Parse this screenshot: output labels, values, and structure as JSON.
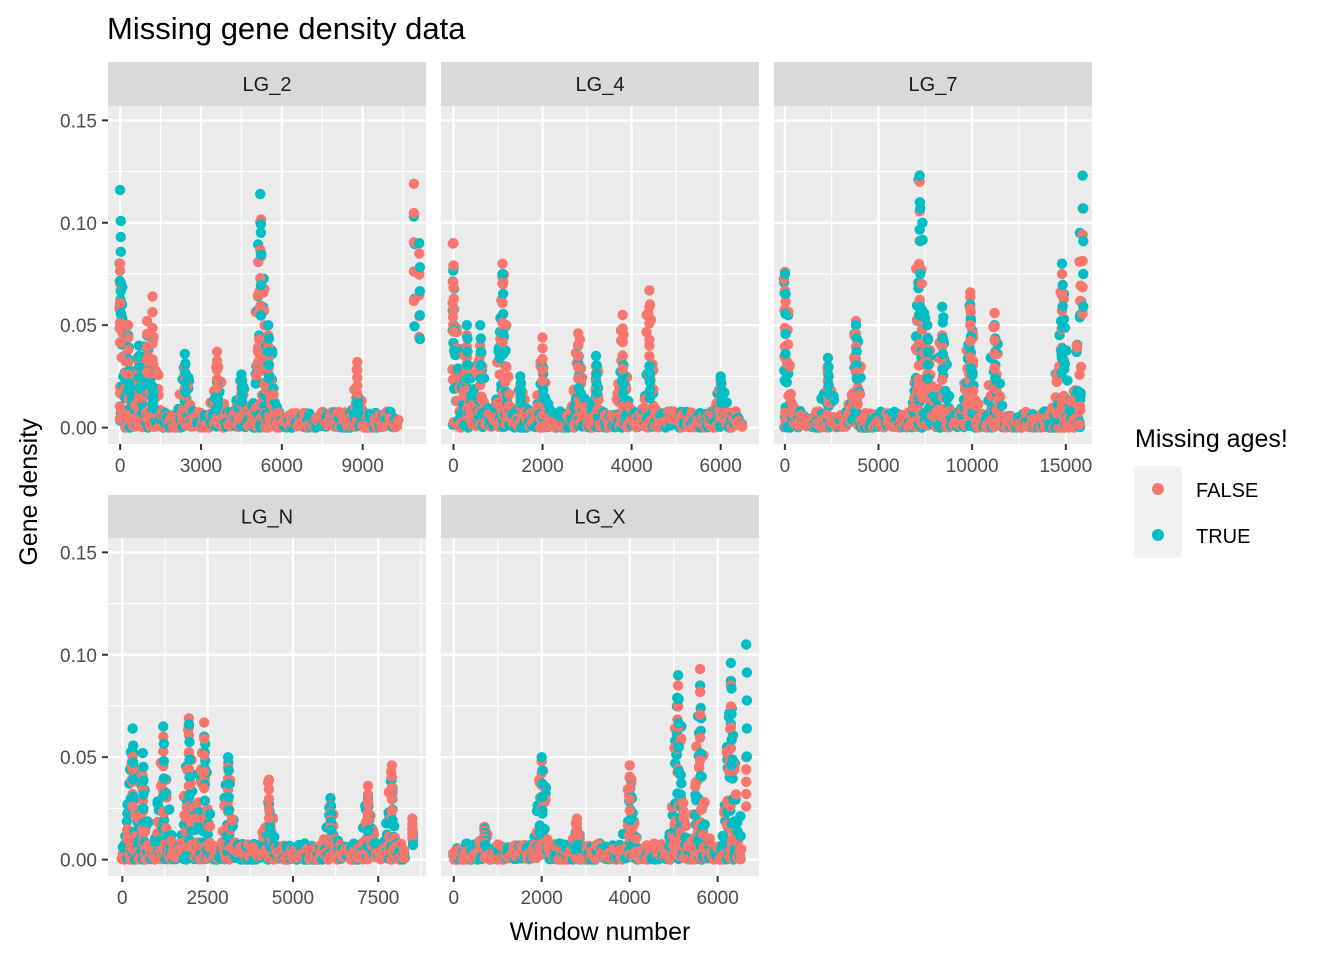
{
  "chart_data": {
    "type": "scatter",
    "title": "Missing gene density data",
    "xlabel": "Window number",
    "ylabel": "Gene density",
    "ylim": [
      -0.008,
      0.157
    ],
    "yticks": [
      0.0,
      0.05,
      0.1,
      0.15
    ],
    "ytick_labels": [
      "0.00",
      "0.05",
      "0.10",
      "0.15"
    ],
    "grid": true,
    "legend": {
      "title": "Missing ages!",
      "placement": "right",
      "entries": [
        {
          "label": "FALSE",
          "color": "#F8766D"
        },
        {
          "label": "TRUE",
          "color": "#00BFC4"
        }
      ]
    },
    "panels": [
      {
        "name": "LG_2",
        "xlim": [
          -450,
          11350
        ],
        "xticks": [
          0,
          3000,
          6000,
          9000
        ],
        "xtick_labels": [
          "0",
          "3000",
          "6000",
          "9000"
        ],
        "peaks": [
          {
            "x": 0,
            "TRUE": 0.116,
            "FALSE": 0.08
          },
          {
            "x": 300,
            "TRUE": 0.045,
            "FALSE": 0.05
          },
          {
            "x": 700,
            "TRUE": 0.04,
            "FALSE": 0.035
          },
          {
            "x": 1000,
            "TRUE": 0.045,
            "FALSE": 0.052
          },
          {
            "x": 1200,
            "TRUE": 0.02,
            "FALSE": 0.064
          },
          {
            "x": 2400,
            "TRUE": 0.036,
            "FALSE": 0.03
          },
          {
            "x": 3600,
            "TRUE": 0.022,
            "FALSE": 0.037
          },
          {
            "x": 4500,
            "TRUE": 0.026,
            "FALSE": 0.022
          },
          {
            "x": 5200,
            "TRUE": 0.114,
            "FALSE": 0.114
          },
          {
            "x": 5500,
            "TRUE": 0.05,
            "FALSE": 0.045
          },
          {
            "x": 8800,
            "TRUE": 0.015,
            "FALSE": 0.032
          },
          {
            "x": 10900,
            "TRUE": 0.103,
            "FALSE": 0.119
          },
          {
            "x": 11100,
            "TRUE": 0.09,
            "FALSE": 0.085
          }
        ]
      },
      {
        "name": "LG_4",
        "xlim": [
          -280,
          6860
        ],
        "xticks": [
          0,
          2000,
          4000,
          6000
        ],
        "xtick_labels": [
          "0",
          "2000",
          "4000",
          "6000"
        ],
        "peaks": [
          {
            "x": 0,
            "TRUE": 0.078,
            "FALSE": 0.09
          },
          {
            "x": 300,
            "TRUE": 0.05,
            "FALSE": 0.045
          },
          {
            "x": 600,
            "TRUE": 0.05,
            "FALSE": 0.04
          },
          {
            "x": 1100,
            "TRUE": 0.075,
            "FALSE": 0.08
          },
          {
            "x": 1500,
            "TRUE": 0.025,
            "FALSE": 0.02
          },
          {
            "x": 2000,
            "TRUE": 0.03,
            "FALSE": 0.044
          },
          {
            "x": 2800,
            "TRUE": 0.04,
            "FALSE": 0.046
          },
          {
            "x": 3200,
            "TRUE": 0.035,
            "FALSE": 0.03
          },
          {
            "x": 3800,
            "TRUE": 0.035,
            "FALSE": 0.055
          },
          {
            "x": 4400,
            "TRUE": 0.03,
            "FALSE": 0.067
          },
          {
            "x": 6000,
            "TRUE": 0.025,
            "FALSE": 0.023
          }
        ]
      },
      {
        "name": "LG_7",
        "xlim": [
          -580,
          16400
        ],
        "xticks": [
          0,
          5000,
          10000,
          15000
        ],
        "xtick_labels": [
          "0",
          "5000",
          "10000",
          "15000"
        ],
        "peaks": [
          {
            "x": 0,
            "TRUE": 0.075,
            "FALSE": 0.076
          },
          {
            "x": 2300,
            "TRUE": 0.034,
            "FALSE": 0.03
          },
          {
            "x": 3800,
            "TRUE": 0.05,
            "FALSE": 0.052
          },
          {
            "x": 7200,
            "TRUE": 0.123,
            "FALSE": 0.12
          },
          {
            "x": 7600,
            "TRUE": 0.05,
            "FALSE": 0.05
          },
          {
            "x": 8400,
            "TRUE": 0.059,
            "FALSE": 0.045
          },
          {
            "x": 9900,
            "TRUE": 0.06,
            "FALSE": 0.066
          },
          {
            "x": 11200,
            "TRUE": 0.05,
            "FALSE": 0.056
          },
          {
            "x": 14800,
            "TRUE": 0.08,
            "FALSE": 0.075
          },
          {
            "x": 15900,
            "TRUE": 0.123,
            "FALSE": 0.107
          }
        ]
      },
      {
        "name": "LG_N",
        "xlim": [
          -420,
          8900
        ],
        "xticks": [
          0,
          2500,
          5000,
          7500
        ],
        "xtick_labels": [
          "0",
          "2500",
          "5000",
          "7500"
        ],
        "peaks": [
          {
            "x": 300,
            "TRUE": 0.064,
            "FALSE": 0.05
          },
          {
            "x": 600,
            "TRUE": 0.052,
            "FALSE": 0.045
          },
          {
            "x": 1200,
            "TRUE": 0.065,
            "FALSE": 0.06
          },
          {
            "x": 1950,
            "TRUE": 0.066,
            "FALSE": 0.069
          },
          {
            "x": 2400,
            "TRUE": 0.06,
            "FALSE": 0.067
          },
          {
            "x": 3100,
            "TRUE": 0.05,
            "FALSE": 0.045
          },
          {
            "x": 4300,
            "TRUE": 0.027,
            "FALSE": 0.039
          },
          {
            "x": 6100,
            "TRUE": 0.03,
            "FALSE": 0.03
          },
          {
            "x": 7200,
            "TRUE": 0.03,
            "FALSE": 0.036
          },
          {
            "x": 7900,
            "TRUE": 0.04,
            "FALSE": 0.046
          },
          {
            "x": 8500,
            "TRUE": 0.015,
            "FALSE": 0.02
          }
        ]
      },
      {
        "name": "LG_X",
        "xlim": [
          -290,
          6940
        ],
        "xticks": [
          0,
          2000,
          4000,
          6000
        ],
        "xtick_labels": [
          "0",
          "2000",
          "4000",
          "6000"
        ],
        "peaks": [
          {
            "x": 700,
            "TRUE": 0.015,
            "FALSE": 0.016
          },
          {
            "x": 2000,
            "TRUE": 0.05,
            "FALSE": 0.048
          },
          {
            "x": 2800,
            "TRUE": 0.015,
            "FALSE": 0.02
          },
          {
            "x": 4000,
            "TRUE": 0.04,
            "FALSE": 0.046
          },
          {
            "x": 5100,
            "TRUE": 0.09,
            "FALSE": 0.085
          },
          {
            "x": 5600,
            "TRUE": 0.085,
            "FALSE": 0.093
          },
          {
            "x": 6300,
            "TRUE": 0.096,
            "FALSE": 0.085
          },
          {
            "x": 6650,
            "TRUE": 0.105,
            "FALSE": 0.05
          }
        ]
      }
    ]
  }
}
